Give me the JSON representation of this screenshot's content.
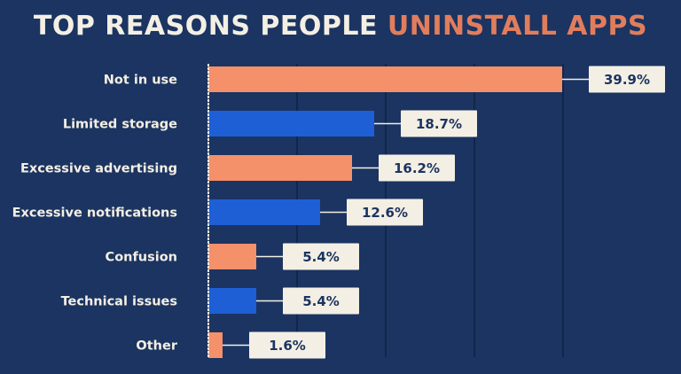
{
  "title": {
    "part1": "TOP REASONS PEOPLE ",
    "part2": "UNINSTALL APPS"
  },
  "colors": {
    "background": "#1b3461",
    "title_light": "#f4efe4",
    "title_accent": "#e27d5c",
    "bar_orange": "#f4906a",
    "bar_blue": "#1f5fd6",
    "label_box": "#f4efe4"
  },
  "chart_data": {
    "type": "bar",
    "orientation": "horizontal",
    "title": "TOP REASONS PEOPLE UNINSTALL APPS",
    "categories": [
      "Not in use",
      "Limited storage",
      "Excessive advertising",
      "Excessive notifications",
      "Confusion",
      "Technical issues",
      "Other"
    ],
    "values": [
      39.9,
      18.7,
      16.2,
      12.6,
      5.4,
      5.4,
      1.6
    ],
    "value_labels": [
      "39.9%",
      "18.7%",
      "16.2%",
      "12.6%",
      "5.4%",
      "5.4%",
      "1.6%"
    ],
    "bar_colors": [
      "orange",
      "blue",
      "orange",
      "blue",
      "orange",
      "blue",
      "orange"
    ],
    "xlim": [
      0,
      40
    ],
    "grid": true,
    "xlabel": "",
    "ylabel": ""
  }
}
